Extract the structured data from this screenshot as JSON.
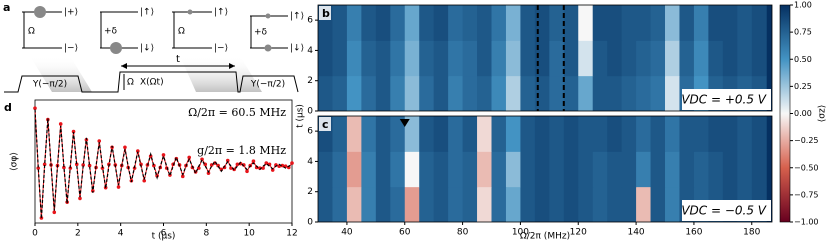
{
  "panel_a": {
    "label": "a",
    "levels": [
      {
        "top": "|+⟩",
        "bottom": "|−⟩",
        "coupling": "Ω"
      },
      {
        "top": "|↑⟩",
        "bottom": "|↓⟩",
        "coupling": "+δ"
      },
      {
        "top": "|↑⟩",
        "bottom": "|−⟩",
        "coupling": "Ω"
      },
      {
        "top": "|↑⟩",
        "bottom": "|↓⟩",
        "coupling": "+δ"
      }
    ],
    "pulses": {
      "first": "Y(−π/2)",
      "duration": "t",
      "drive": "Ω",
      "middle": "X(Ωt)",
      "last": "Y(−π/2)"
    }
  },
  "chart_data": [
    {
      "type": "heatmap",
      "label": "b",
      "annotation": "VDC = +0.5 V",
      "x": [
        32.5,
        37.5,
        42.5,
        47.5,
        52.5,
        57.5,
        62.5,
        67.5,
        72.5,
        77.5,
        82.5,
        87.5,
        92.5,
        97.5,
        102.5,
        107.5,
        112.5,
        117.5,
        122.5,
        127.5,
        132.5,
        137.5,
        142.5,
        147.5,
        152.5,
        157.5,
        162.5,
        167.5,
        172.5,
        177.5,
        182.5
      ],
      "y": [
        1.17,
        3.5,
        5.83
      ],
      "z": [
        [
          0.8,
          0.75,
          0.5,
          0.7,
          0.8,
          0.6,
          0.3,
          0.7,
          0.8,
          0.6,
          0.7,
          0.75,
          0.55,
          0.2,
          0.75,
          0.8,
          0.7,
          0.75,
          0.4,
          0.8,
          0.8,
          0.75,
          0.7,
          0.65,
          0.1,
          0.7,
          0.5,
          0.75,
          0.8,
          0.75,
          0.8
        ],
        [
          0.85,
          0.8,
          0.55,
          0.75,
          0.8,
          0.65,
          0.35,
          0.75,
          0.8,
          0.65,
          0.7,
          0.8,
          0.6,
          0.3,
          0.8,
          0.85,
          0.7,
          0.8,
          0.1,
          0.8,
          0.85,
          0.8,
          0.75,
          0.7,
          0.2,
          0.75,
          0.55,
          0.8,
          0.85,
          0.8,
          0.85
        ],
        [
          0.85,
          0.8,
          0.6,
          0.8,
          0.85,
          0.7,
          0.4,
          0.8,
          0.85,
          0.7,
          0.75,
          0.8,
          0.65,
          0.35,
          0.8,
          0.85,
          0.75,
          0.8,
          0.0,
          0.85,
          0.85,
          0.8,
          0.8,
          0.75,
          0.3,
          0.8,
          0.6,
          0.85,
          0.85,
          0.8,
          0.85
        ]
      ],
      "xlim": [
        30,
        187
      ],
      "ylim": [
        0,
        7
      ],
      "yticks": [
        0,
        2,
        4,
        6
      ],
      "vlines": [
        106,
        115
      ],
      "zlim": [
        -1,
        1
      ],
      "colormap": [
        "#67001f",
        "#d6604d",
        "#f7f7f7",
        "#4393c3",
        "#053061"
      ],
      "zlabel": "⟨σz⟩",
      "zticks": [
        {
          "value": -1,
          "label": "−1.00"
        },
        {
          "value": -0.75,
          "label": "−0.75"
        },
        {
          "value": -0.5,
          "label": "−0.50"
        },
        {
          "value": -0.25,
          "label": "−0.25"
        },
        {
          "value": 0,
          "label": "0.00"
        },
        {
          "value": 0.25,
          "label": "0.25"
        },
        {
          "value": 0.5,
          "label": "0.50"
        },
        {
          "value": 0.75,
          "label": "0.75"
        },
        {
          "value": 1,
          "label": "1.00"
        }
      ]
    },
    {
      "type": "heatmap",
      "label": "c",
      "annotation": "VDC = −0.5 V",
      "xlabel": "Ω/2π (MHz)",
      "ylabel": "t (μs)",
      "x": [
        32.5,
        37.5,
        42.5,
        47.5,
        52.5,
        57.5,
        62.5,
        67.5,
        72.5,
        77.5,
        82.5,
        87.5,
        92.5,
        97.5,
        102.5,
        107.5,
        112.5,
        117.5,
        122.5,
        127.5,
        132.5,
        137.5,
        142.5,
        147.5,
        152.5,
        157.5,
        162.5,
        167.5,
        172.5,
        177.5,
        182.5
      ],
      "y": [
        1.17,
        3.5,
        5.83
      ],
      "z": [
        [
          0.8,
          0.7,
          -0.2,
          0.6,
          0.8,
          0.7,
          -0.3,
          0.75,
          0.8,
          0.7,
          0.75,
          -0.1,
          0.7,
          0.4,
          0.8,
          0.85,
          0.8,
          0.85,
          0.8,
          0.75,
          0.8,
          0.8,
          -0.2,
          0.8,
          0.6,
          0.8,
          0.75,
          0.8,
          0.85,
          0.8,
          0.85
        ],
        [
          0.8,
          0.7,
          -0.3,
          0.6,
          0.8,
          0.65,
          0.0,
          0.75,
          0.8,
          0.7,
          0.75,
          -0.2,
          0.7,
          0.3,
          0.8,
          0.85,
          0.8,
          0.85,
          0.8,
          0.75,
          0.8,
          0.8,
          0.6,
          0.8,
          0.6,
          0.8,
          0.75,
          0.8,
          0.85,
          0.8,
          0.85
        ],
        [
          0.85,
          0.75,
          -0.2,
          0.65,
          0.8,
          0.7,
          0.3,
          0.8,
          0.85,
          0.7,
          0.8,
          -0.1,
          0.75,
          0.5,
          0.8,
          0.85,
          0.8,
          0.85,
          0.8,
          0.8,
          0.85,
          0.8,
          0.7,
          0.8,
          0.65,
          0.8,
          0.8,
          0.85,
          0.85,
          0.8,
          0.85
        ]
      ],
      "xlim": [
        30,
        187
      ],
      "ylim": [
        0,
        7
      ],
      "xticks": [
        40,
        60,
        80,
        100,
        120,
        140,
        160,
        180
      ],
      "yticks": [
        0,
        2,
        4,
        6
      ],
      "marker_x": 60,
      "zlim": [
        -1,
        1
      ],
      "colormap": [
        "#67001f",
        "#d6604d",
        "#f7f7f7",
        "#4393c3",
        "#053061"
      ]
    },
    {
      "type": "line",
      "label": "d",
      "xlabel": "t (μs)",
      "ylabel": "⟨σφ⟩",
      "annotations": [
        "Ω/2π = 60.5 MHz",
        "g/2π = 1.8 MHz"
      ],
      "x": [
        0,
        0.15,
        0.3,
        0.45,
        0.6,
        0.75,
        0.9,
        1.05,
        1.2,
        1.35,
        1.5,
        1.65,
        1.8,
        1.95,
        2.1,
        2.25,
        2.4,
        2.55,
        2.7,
        2.85,
        3,
        3.15,
        3.3,
        3.45,
        3.6,
        3.75,
        3.9,
        4.05,
        4.2,
        4.35,
        4.5,
        4.65,
        4.8,
        4.95,
        5.1,
        5.25,
        5.4,
        5.55,
        5.7,
        5.85,
        6,
        6.15,
        6.3,
        6.45,
        6.6,
        6.75,
        6.9,
        7.05,
        7.2,
        7.35,
        7.5,
        7.65,
        7.8,
        7.95,
        8.1,
        8.25,
        8.4,
        8.55,
        8.7,
        8.85,
        9,
        9.15,
        9.3,
        9.45,
        9.6,
        9.75,
        9.9,
        10.05,
        10.2,
        10.35,
        10.5,
        10.65,
        10.8,
        10.95,
        11.1,
        11.25,
        11.4,
        11.55,
        11.7,
        11.85,
        12
      ],
      "series": [
        {
          "style": "markers",
          "color": "#e8141a",
          "values": [
            0.62,
            -0.33,
            -1.12,
            -0.27,
            0.44,
            -0.28,
            -1.03,
            -0.29,
            0.37,
            -0.32,
            -0.87,
            -0.33,
            0.25,
            -0.27,
            -0.81,
            -0.28,
            0.12,
            -0.29,
            -0.69,
            -0.32,
            0.1,
            -0.33,
            -0.64,
            -0.27,
            0.0,
            -0.28,
            -0.63,
            -0.29,
            0.0,
            -0.32,
            -0.53,
            -0.33,
            -0.06,
            -0.27,
            -0.53,
            -0.28,
            -0.14,
            -0.29,
            -0.45,
            -0.32,
            -0.12,
            -0.33,
            -0.44,
            -0.27,
            -0.18,
            -0.28,
            -0.46,
            -0.29,
            -0.16,
            -0.32,
            -0.39,
            -0.33,
            -0.19,
            -0.27,
            -0.41,
            -0.28,
            -0.25,
            -0.29,
            -0.35,
            -0.32,
            -0.21,
            -0.33,
            -0.35,
            -0.27,
            -0.26,
            -0.28,
            -0.38,
            -0.29,
            -0.22,
            -0.32,
            -0.33,
            -0.33,
            -0.25,
            -0.27,
            -0.36,
            -0.28,
            -0.3,
            -0.29,
            -0.3,
            -0.32,
            -0.25
          ]
        },
        {
          "style": "dashed",
          "color": "#000000",
          "values": [
            0.6,
            -0.3,
            -1.13,
            -0.3,
            0.46,
            -0.3,
            -1.0,
            -0.3,
            0.34,
            -0.3,
            -0.89,
            -0.3,
            0.24,
            -0.3,
            -0.79,
            -0.3,
            0.15,
            -0.3,
            -0.72,
            -0.3,
            0.08,
            -0.3,
            -0.65,
            -0.3,
            0.02,
            -0.3,
            -0.6,
            -0.3,
            -0.03,
            -0.3,
            -0.55,
            -0.3,
            -0.07,
            -0.3,
            -0.51,
            -0.3,
            -0.11,
            -0.3,
            -0.48,
            -0.3,
            -0.14,
            -0.3,
            -0.45,
            -0.3,
            -0.16,
            -0.3,
            -0.43,
            -0.3,
            -0.19,
            -0.3,
            -0.41,
            -0.3,
            -0.2,
            -0.3,
            -0.39,
            -0.3,
            -0.22,
            -0.3,
            -0.38,
            -0.3,
            -0.23,
            -0.3,
            -0.36,
            -0.3,
            -0.24,
            -0.3,
            -0.35,
            -0.3,
            -0.25,
            -0.3,
            -0.35,
            -0.3,
            -0.26,
            -0.3,
            -0.34,
            -0.3,
            -0.27,
            -0.3,
            -0.33,
            -0.3,
            -0.27
          ]
        }
      ],
      "xlim": [
        0,
        12
      ],
      "ylim": [
        -1.2,
        0.75
      ],
      "xticks": [
        0,
        2,
        4,
        6,
        8,
        10,
        12
      ]
    }
  ]
}
